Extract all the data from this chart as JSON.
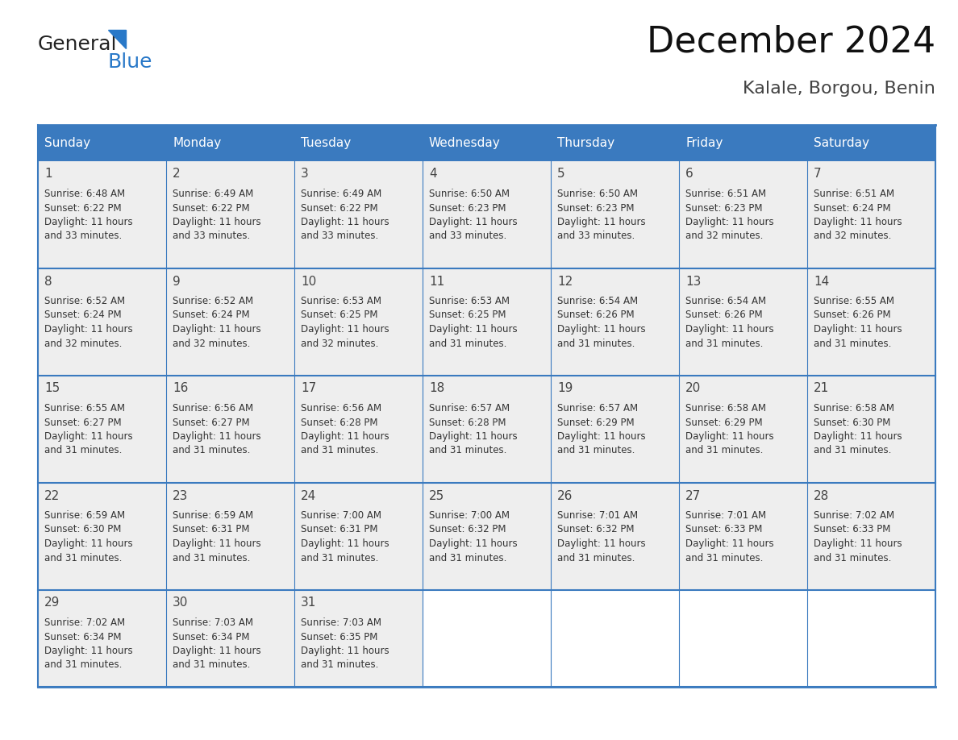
{
  "title": "December 2024",
  "subtitle": "Kalale, Borgou, Benin",
  "header_bg": "#3a7abf",
  "header_text_color": "#ffffff",
  "cell_bg": "#eeeeee",
  "empty_cell_bg": "#ffffff",
  "border_color": "#3a7abf",
  "grid_color": "#aaaaaa",
  "day_headers": [
    "Sunday",
    "Monday",
    "Tuesday",
    "Wednesday",
    "Thursday",
    "Friday",
    "Saturday"
  ],
  "cell_text_color": "#333333",
  "day_num_color": "#444444",
  "calendar_data": [
    [
      {
        "day": 1,
        "sunrise": "6:48 AM",
        "sunset": "6:22 PM",
        "daylight": "11 hours and 33 minutes."
      },
      {
        "day": 2,
        "sunrise": "6:49 AM",
        "sunset": "6:22 PM",
        "daylight": "11 hours and 33 minutes."
      },
      {
        "day": 3,
        "sunrise": "6:49 AM",
        "sunset": "6:22 PM",
        "daylight": "11 hours and 33 minutes."
      },
      {
        "day": 4,
        "sunrise": "6:50 AM",
        "sunset": "6:23 PM",
        "daylight": "11 hours and 33 minutes."
      },
      {
        "day": 5,
        "sunrise": "6:50 AM",
        "sunset": "6:23 PM",
        "daylight": "11 hours and 33 minutes."
      },
      {
        "day": 6,
        "sunrise": "6:51 AM",
        "sunset": "6:23 PM",
        "daylight": "11 hours and 32 minutes."
      },
      {
        "day": 7,
        "sunrise": "6:51 AM",
        "sunset": "6:24 PM",
        "daylight": "11 hours and 32 minutes."
      }
    ],
    [
      {
        "day": 8,
        "sunrise": "6:52 AM",
        "sunset": "6:24 PM",
        "daylight": "11 hours and 32 minutes."
      },
      {
        "day": 9,
        "sunrise": "6:52 AM",
        "sunset": "6:24 PM",
        "daylight": "11 hours and 32 minutes."
      },
      {
        "day": 10,
        "sunrise": "6:53 AM",
        "sunset": "6:25 PM",
        "daylight": "11 hours and 32 minutes."
      },
      {
        "day": 11,
        "sunrise": "6:53 AM",
        "sunset": "6:25 PM",
        "daylight": "11 hours and 31 minutes."
      },
      {
        "day": 12,
        "sunrise": "6:54 AM",
        "sunset": "6:26 PM",
        "daylight": "11 hours and 31 minutes."
      },
      {
        "day": 13,
        "sunrise": "6:54 AM",
        "sunset": "6:26 PM",
        "daylight": "11 hours and 31 minutes."
      },
      {
        "day": 14,
        "sunrise": "6:55 AM",
        "sunset": "6:26 PM",
        "daylight": "11 hours and 31 minutes."
      }
    ],
    [
      {
        "day": 15,
        "sunrise": "6:55 AM",
        "sunset": "6:27 PM",
        "daylight": "11 hours and 31 minutes."
      },
      {
        "day": 16,
        "sunrise": "6:56 AM",
        "sunset": "6:27 PM",
        "daylight": "11 hours and 31 minutes."
      },
      {
        "day": 17,
        "sunrise": "6:56 AM",
        "sunset": "6:28 PM",
        "daylight": "11 hours and 31 minutes."
      },
      {
        "day": 18,
        "sunrise": "6:57 AM",
        "sunset": "6:28 PM",
        "daylight": "11 hours and 31 minutes."
      },
      {
        "day": 19,
        "sunrise": "6:57 AM",
        "sunset": "6:29 PM",
        "daylight": "11 hours and 31 minutes."
      },
      {
        "day": 20,
        "sunrise": "6:58 AM",
        "sunset": "6:29 PM",
        "daylight": "11 hours and 31 minutes."
      },
      {
        "day": 21,
        "sunrise": "6:58 AM",
        "sunset": "6:30 PM",
        "daylight": "11 hours and 31 minutes."
      }
    ],
    [
      {
        "day": 22,
        "sunrise": "6:59 AM",
        "sunset": "6:30 PM",
        "daylight": "11 hours and 31 minutes."
      },
      {
        "day": 23,
        "sunrise": "6:59 AM",
        "sunset": "6:31 PM",
        "daylight": "11 hours and 31 minutes."
      },
      {
        "day": 24,
        "sunrise": "7:00 AM",
        "sunset": "6:31 PM",
        "daylight": "11 hours and 31 minutes."
      },
      {
        "day": 25,
        "sunrise": "7:00 AM",
        "sunset": "6:32 PM",
        "daylight": "11 hours and 31 minutes."
      },
      {
        "day": 26,
        "sunrise": "7:01 AM",
        "sunset": "6:32 PM",
        "daylight": "11 hours and 31 minutes."
      },
      {
        "day": 27,
        "sunrise": "7:01 AM",
        "sunset": "6:33 PM",
        "daylight": "11 hours and 31 minutes."
      },
      {
        "day": 28,
        "sunrise": "7:02 AM",
        "sunset": "6:33 PM",
        "daylight": "11 hours and 31 minutes."
      }
    ],
    [
      {
        "day": 29,
        "sunrise": "7:02 AM",
        "sunset": "6:34 PM",
        "daylight": "11 hours and 31 minutes."
      },
      {
        "day": 30,
        "sunrise": "7:03 AM",
        "sunset": "6:34 PM",
        "daylight": "11 hours and 31 minutes."
      },
      {
        "day": 31,
        "sunrise": "7:03 AM",
        "sunset": "6:35 PM",
        "daylight": "11 hours and 31 minutes."
      },
      null,
      null,
      null,
      null
    ]
  ],
  "logo_text1": "General",
  "logo_text2": "Blue",
  "logo_text1_color": "#222222",
  "logo_text2_color": "#2878c8",
  "logo_triangle_color": "#2878c8",
  "title_fontsize": 32,
  "subtitle_fontsize": 16,
  "header_fontsize": 11,
  "day_num_fontsize": 11,
  "cell_fontsize": 8.5
}
